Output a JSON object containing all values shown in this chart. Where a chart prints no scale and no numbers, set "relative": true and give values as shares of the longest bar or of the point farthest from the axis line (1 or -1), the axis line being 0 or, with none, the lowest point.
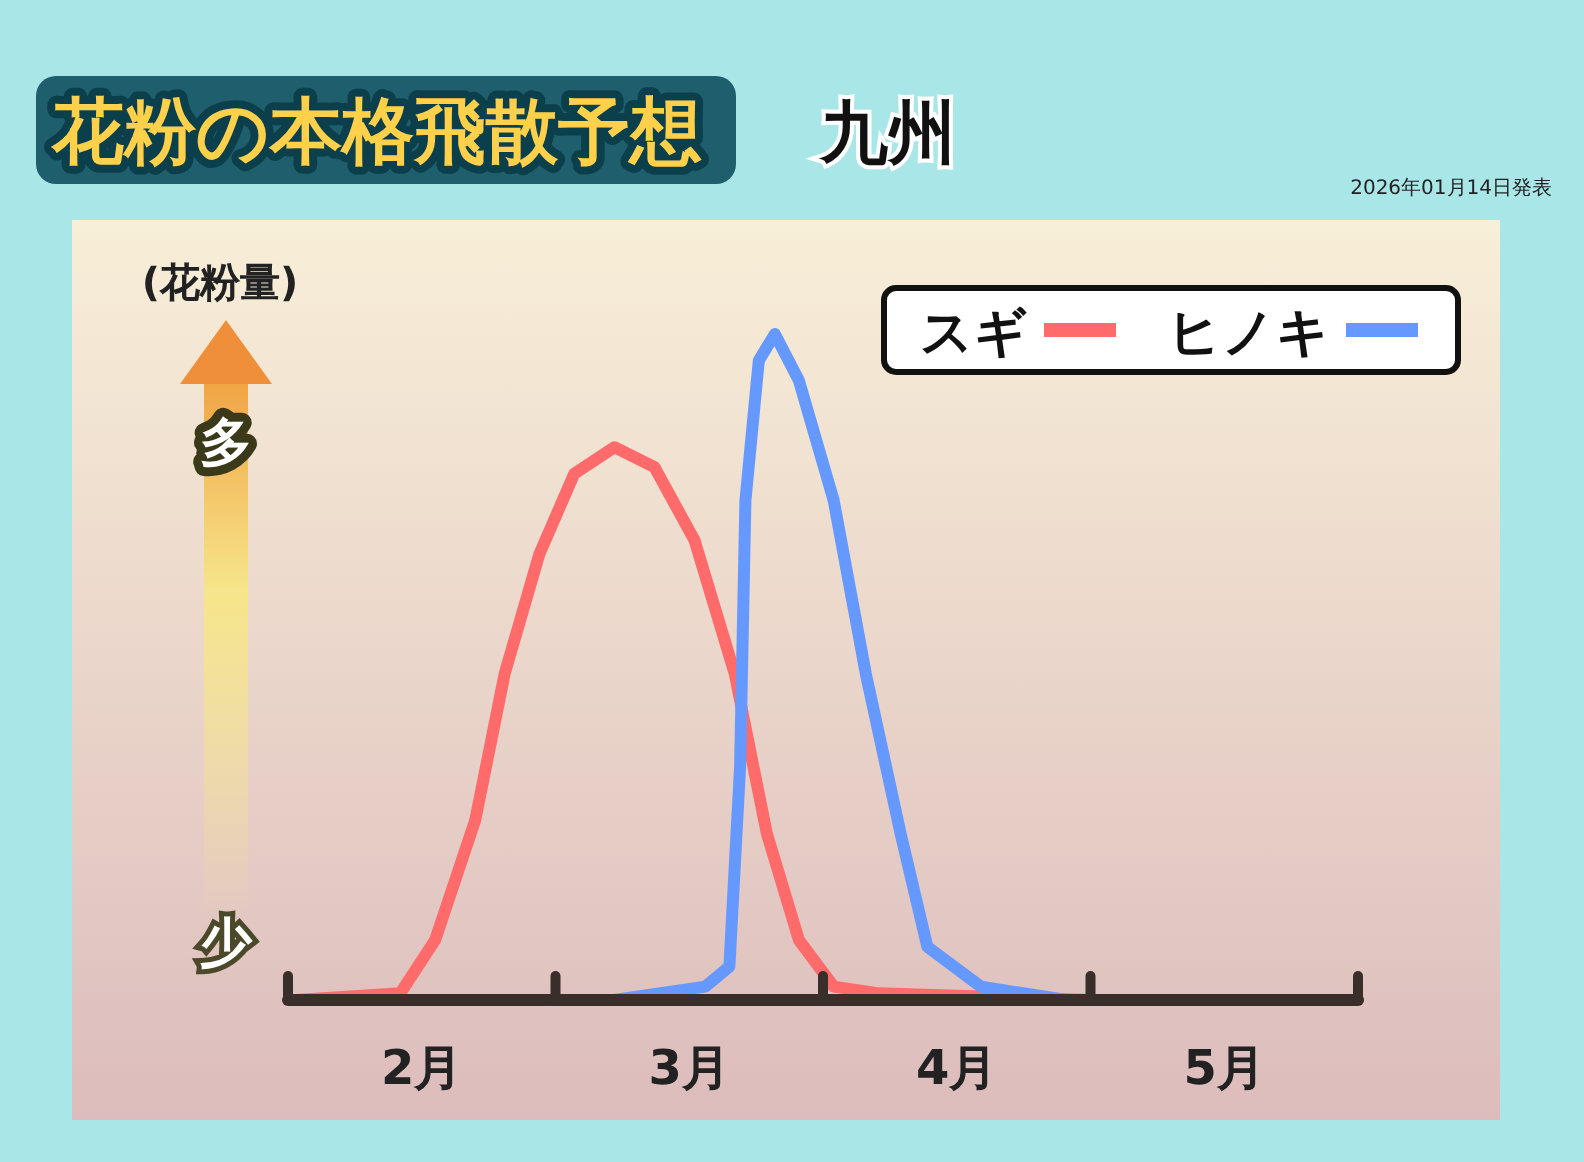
{
  "chart_data": {
    "type": "line",
    "title": "花粉の本格飛散予想",
    "subtitle": "九州",
    "ylabel": "(花粉量)",
    "relative": true,
    "legend": "top right",
    "line_style": "solid",
    "annotations": [
      "2026年01月14日発表",
      "多",
      "少"
    ],
    "xlim": [
      2,
      6
    ],
    "xticks": [
      {
        "value": 2,
        "label": null
      },
      {
        "value": 3,
        "label": null
      },
      {
        "value": 4,
        "label": null
      },
      {
        "value": 5,
        "label": null
      },
      {
        "value": 6,
        "label": null
      },
      {
        "value": 2.5,
        "label": "2月"
      },
      {
        "value": 3.5,
        "label": "3月"
      },
      {
        "value": 4.5,
        "label": "4月"
      },
      {
        "value": 5.5,
        "label": "5月"
      }
    ],
    "series": [
      {
        "name": "スギ",
        "color": "#ff6b6b",
        "x": [
          2.03,
          2.42,
          2.55,
          2.7,
          2.81,
          2.94,
          3.07,
          3.22,
          3.37,
          3.52,
          3.67,
          3.79,
          3.91,
          4.04,
          4.21,
          5.0,
          6.0
        ],
        "values": [
          0,
          0.01,
          0.09,
          0.27,
          0.49,
          0.67,
          0.79,
          0.83,
          0.8,
          0.69,
          0.49,
          0.25,
          0.09,
          0.02,
          0.01,
          0,
          0
        ]
      },
      {
        "name": "ヒノキ",
        "color": "#6699ff",
        "x": [
          3.22,
          3.56,
          3.65,
          3.69,
          3.71,
          3.76,
          3.82,
          3.91,
          4.04,
          4.16,
          4.29,
          4.39,
          4.59,
          4.91
        ],
        "values": [
          0,
          0.02,
          0.05,
          0.35,
          0.75,
          0.96,
          1,
          0.93,
          0.75,
          0.49,
          0.25,
          0.08,
          0.02,
          0
        ]
      }
    ]
  }
}
